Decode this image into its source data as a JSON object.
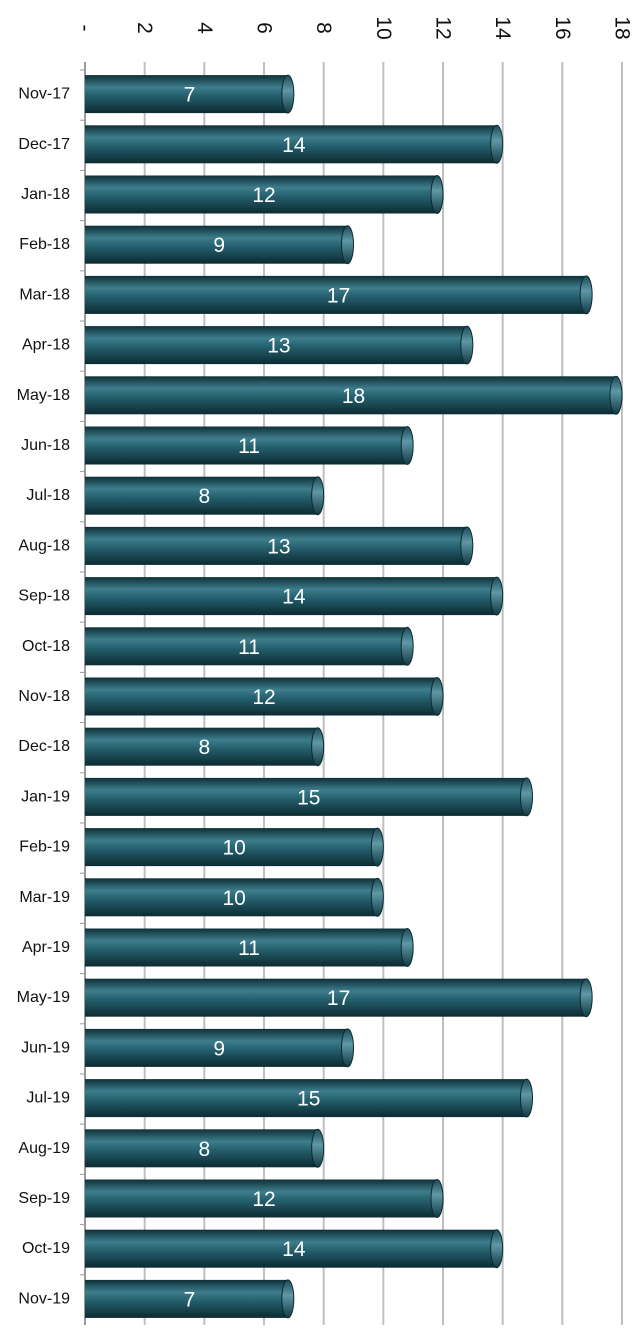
{
  "chart_data": {
    "type": "bar",
    "orientation": "horizontal",
    "categories": [
      "Nov-17",
      "Dec-17",
      "Jan-18",
      "Feb-18",
      "Mar-18",
      "Apr-18",
      "May-18",
      "Jun-18",
      "Jul-18",
      "Aug-18",
      "Sep-18",
      "Oct-18",
      "Nov-18",
      "Dec-18",
      "Jan-19",
      "Feb-19",
      "Mar-19",
      "Apr-19",
      "May-19",
      "Jun-19",
      "Jul-19",
      "Aug-19",
      "Sep-19",
      "Oct-19",
      "Nov-19"
    ],
    "values": [
      7,
      14,
      12,
      9,
      17,
      13,
      18,
      11,
      8,
      13,
      14,
      11,
      12,
      8,
      15,
      10,
      10,
      11,
      17,
      9,
      15,
      8,
      12,
      14,
      7
    ],
    "xlim": [
      0,
      18
    ],
    "ticks": [
      0,
      2,
      4,
      6,
      8,
      10,
      12,
      14,
      16,
      18
    ],
    "tick_labels": [
      "-",
      "2",
      "4",
      "6",
      "8",
      "10",
      "12",
      "14",
      "16",
      "18"
    ],
    "tick_label_rotation": "rotated 90 degrees clockwise",
    "grid": true,
    "data_labels": true,
    "bar_style": "3d-cylinder",
    "colors": {
      "bar": "#1f5866",
      "bar_dark": "#0e3038",
      "bar_light": "#3d7d8c",
      "grid": "#bfbfbf",
      "label_text": "#ffffff"
    }
  }
}
